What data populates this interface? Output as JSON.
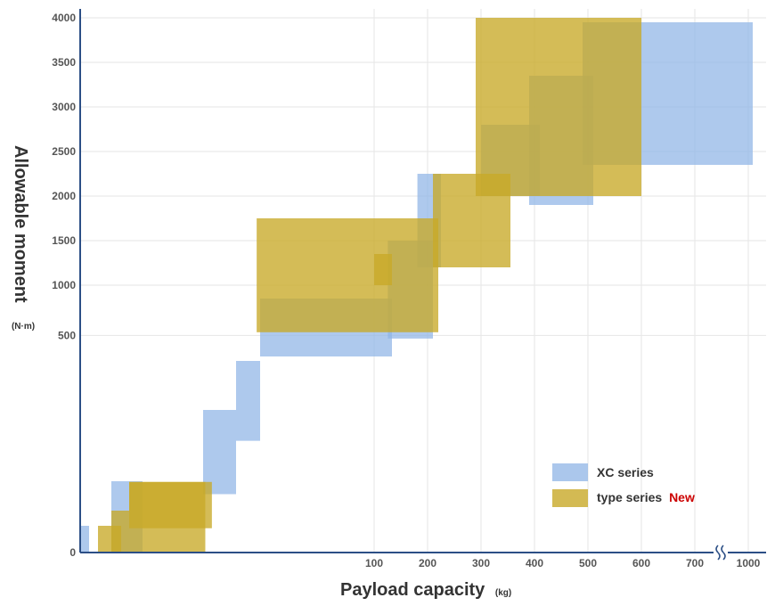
{
  "chart_data": {
    "type": "area",
    "title": "",
    "xlabel": "Payload capacity",
    "xunit": "(kg)",
    "ylabel": "Allowable moment",
    "yunit": "(N·m)",
    "x_ticks": [
      "100",
      "200",
      "300",
      "400",
      "500",
      "600",
      "700",
      "1000"
    ],
    "y_ticks": [
      "0",
      "500",
      "1000",
      "1500",
      "2000",
      "2500",
      "3000",
      "3500",
      "4000"
    ],
    "x_axis_break": true,
    "grid": true,
    "legend_position": "bottom-right",
    "colors": {
      "xc": "#8fb4e6",
      "type": "#c8a928",
      "axis": "#2c4f86",
      "new": "#cc0000"
    },
    "series": [
      {
        "name": "XC series",
        "new_label": "",
        "rects": [
          {
            "x0": 2,
            "x1": 4,
            "y0": 0,
            "y1": 33
          },
          {
            "x0": 9,
            "x1": 20,
            "y0": 0,
            "y1": 88
          },
          {
            "x0": 30,
            "x1": 45,
            "y0": 70,
            "y1": 215
          },
          {
            "x0": 45,
            "x1": 80,
            "y0": 160,
            "y1": 285
          },
          {
            "x0": 80,
            "x1": 165,
            "y0": 300,
            "y1": 850
          },
          {
            "x0": 150,
            "x1": 210,
            "y0": 470,
            "y1": 1500
          },
          {
            "x0": 190,
            "x1": 225,
            "y0": 1200,
            "y1": 2250
          },
          {
            "x0": 300,
            "x1": 410,
            "y0": 2000,
            "y1": 2800
          },
          {
            "x0": 390,
            "x1": 510,
            "y0": 1900,
            "y1": 3350
          },
          {
            "x0": 490,
            "x1": 1010,
            "y0": 2350,
            "y1": 3950
          }
        ]
      },
      {
        "name": "type series",
        "new_label": "New",
        "rects": [
          {
            "x0": 6,
            "x1": 12,
            "y0": 0,
            "y1": 33
          },
          {
            "x0": 9,
            "x1": 15,
            "y0": 0,
            "y1": 47
          },
          {
            "x0": 15,
            "x1": 31,
            "y0": 0,
            "y1": 87
          },
          {
            "x0": 15,
            "x1": 34,
            "y0": 30,
            "y1": 87
          },
          {
            "x0": 75,
            "x1": 220,
            "y0": 530,
            "y1": 1750
          },
          {
            "x0": 100,
            "x1": 165,
            "y0": 1000,
            "y1": 1350
          },
          {
            "x0": 210,
            "x1": 355,
            "y0": 1200,
            "y1": 2250
          },
          {
            "x0": 290,
            "x1": 600,
            "y0": 2000,
            "y1": 4000
          }
        ]
      }
    ]
  }
}
